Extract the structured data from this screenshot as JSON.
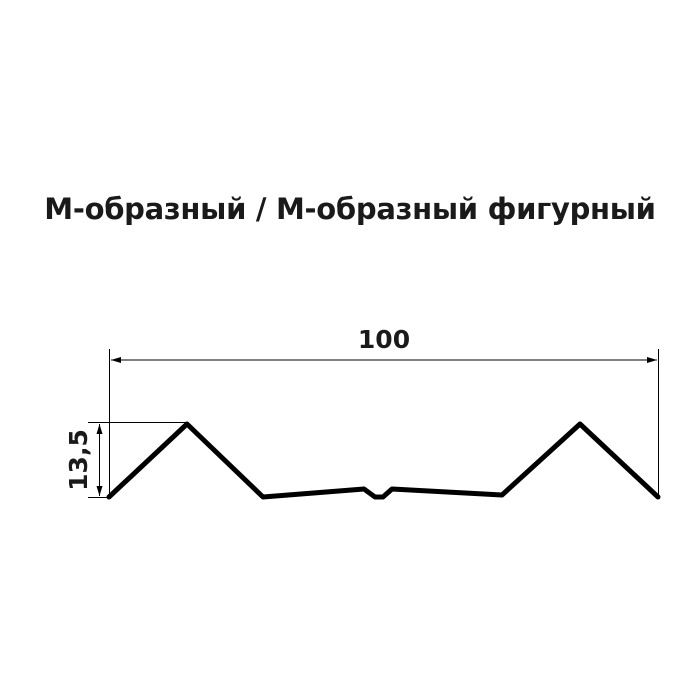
{
  "title": "М-образный / М-образный фигурный",
  "dimensions": {
    "width_label": "100",
    "height_label": "13,5"
  },
  "colors": {
    "line": "#000000",
    "text": "#1a1a1a"
  }
}
